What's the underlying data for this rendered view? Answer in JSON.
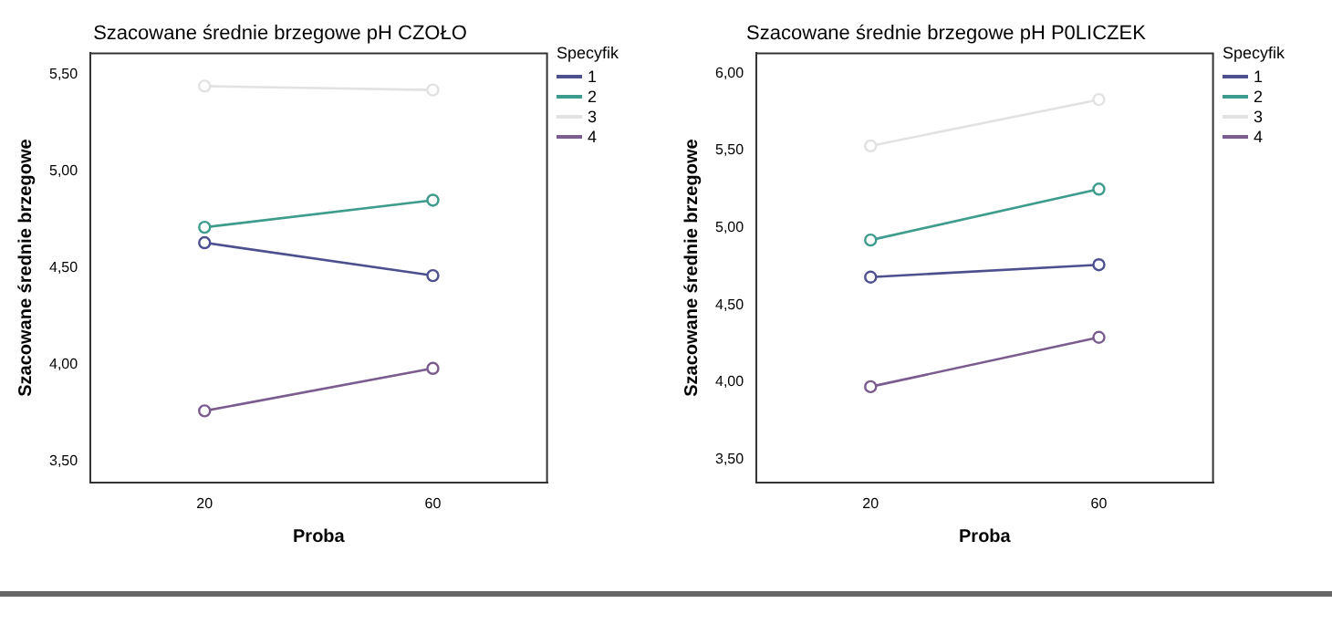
{
  "chart_data": [
    {
      "type": "line",
      "title": "Szacowane średnie brzegowe pH CZOŁO",
      "xlabel": "Proba",
      "ylabel": "Szacowane średnie brzegowe",
      "legend_title": "Specyfik",
      "categories": [
        "20",
        "60"
      ],
      "ylim": [
        3.39,
        5.61
      ],
      "yticks": [
        {
          "value": 3.5,
          "label": "3,50"
        },
        {
          "value": 4,
          "label": "4,00"
        },
        {
          "value": 4.5,
          "label": "4,50"
        },
        {
          "value": 5,
          "label": "5,00"
        },
        {
          "value": 5.5,
          "label": "5,50"
        }
      ],
      "grid": false,
      "legend": "top right",
      "marker": "circle",
      "line_style": "solid",
      "series": [
        {
          "name": "1",
          "color": "#4d4f8f",
          "values": [
            4.63,
            4.46
          ]
        },
        {
          "name": "2",
          "color": "#3d9c8c",
          "values": [
            4.71,
            4.85
          ]
        },
        {
          "name": "3",
          "color": "#e2e2e2",
          "values": [
            5.44,
            5.42
          ]
        },
        {
          "name": "4",
          "color": "#7a5c8e",
          "values": [
            3.76,
            3.98
          ]
        }
      ]
    },
    {
      "type": "line",
      "title": "Szacowane średnie brzegowe pH P0LICZEK",
      "xlabel": "Proba",
      "ylabel": "Szacowane średnie brzegowe",
      "legend_title": "Specyfik",
      "categories": [
        "20",
        "60"
      ],
      "ylim": [
        3.35,
        6.13
      ],
      "yticks": [
        {
          "value": 3.5,
          "label": "3,50"
        },
        {
          "value": 4,
          "label": "4,00"
        },
        {
          "value": 4.5,
          "label": "4,50"
        },
        {
          "value": 5,
          "label": "5,00"
        },
        {
          "value": 5.5,
          "label": "5,50"
        },
        {
          "value": 6,
          "label": "6,00"
        }
      ],
      "grid": false,
      "legend": "top right",
      "marker": "circle",
      "line_style": "solid",
      "series": [
        {
          "name": "1",
          "color": "#4d4f8f",
          "values": [
            4.68,
            4.76
          ]
        },
        {
          "name": "2",
          "color": "#3d9c8c",
          "values": [
            4.92,
            5.25
          ]
        },
        {
          "name": "3",
          "color": "#e2e2e2",
          "values": [
            5.53,
            5.83
          ]
        },
        {
          "name": "4",
          "color": "#7a5c8e",
          "values": [
            3.97,
            4.29
          ]
        }
      ]
    }
  ]
}
